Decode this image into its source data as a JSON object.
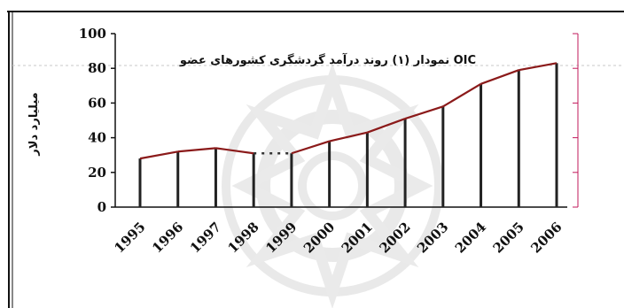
{
  "chart_data": {
    "type": "bar",
    "title": "نمودار (۱) روند درآمد گردشگری کشورهای عضو OIC",
    "ylabel": "میلیارد دلار",
    "xlabel": "",
    "categories": [
      "1995",
      "1996",
      "1997",
      "1998",
      "1999",
      "2000",
      "2001",
      "2002",
      "2003",
      "2004",
      "2005",
      "2006"
    ],
    "values": [
      28,
      32,
      34,
      31,
      31,
      38,
      43,
      51,
      58,
      71,
      79,
      83
    ],
    "ylim": [
      0,
      100
    ],
    "yticks": [
      0,
      20,
      40,
      60,
      80,
      100
    ],
    "grid": false,
    "legend": "none",
    "colors": {
      "bar": "#222222",
      "trend_line": "#8b1a1a",
      "accent": "#c2185b",
      "watermark": "#dcdcdc"
    }
  }
}
